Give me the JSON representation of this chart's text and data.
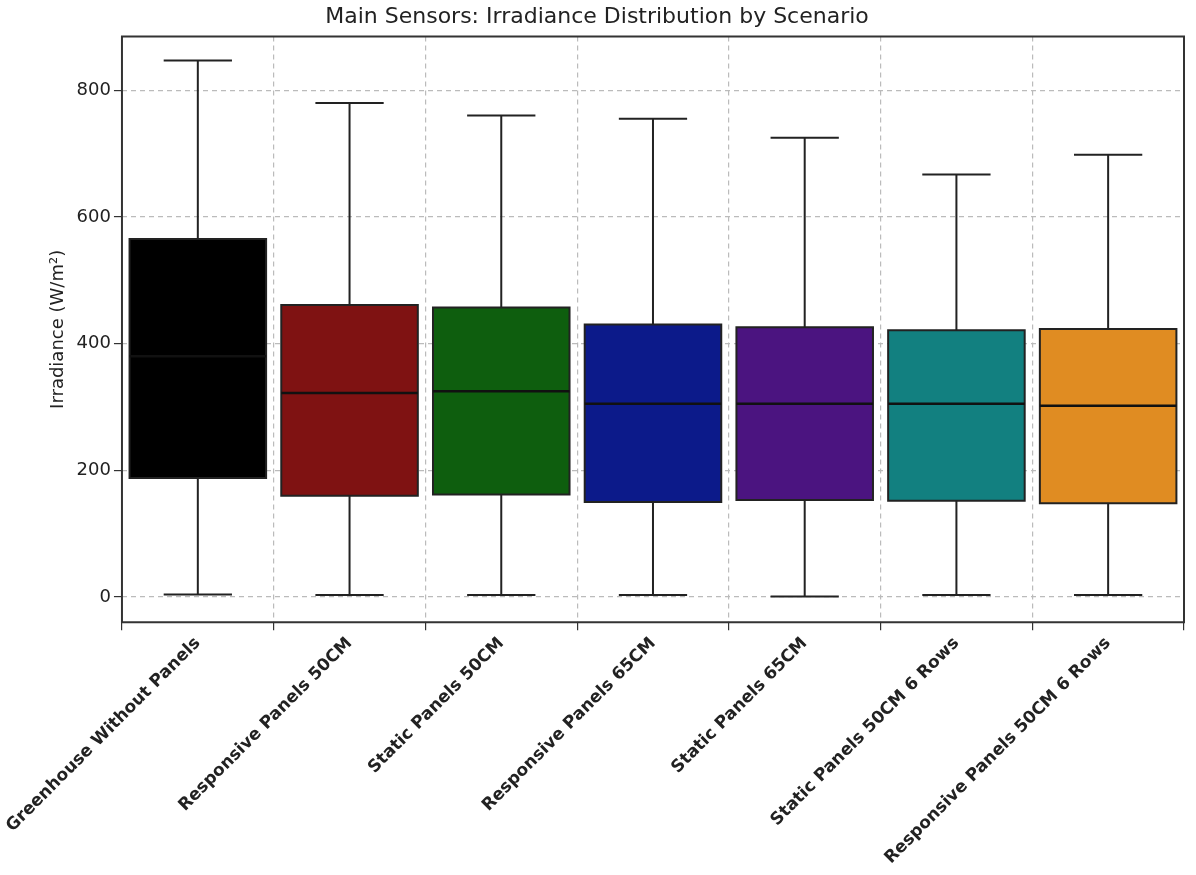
{
  "chart_data": {
    "type": "box",
    "title": "Main Sensors: Irradiance Distribution by Scenario",
    "ylabel": "Irradiance (W/m²)",
    "categories": [
      "Greenhouse Without Panels",
      "Responsive Panels 50CM",
      "Static Panels 50CM",
      "Responsive Panels 65CM",
      "Static Panels 65CM",
      "Static Panels 50CM 6 Rows",
      "Responsive Panels 50CM 6 Rows"
    ],
    "colors": [
      "#000000",
      "#7f1212",
      "#0e5e0e",
      "#0c1a8a",
      "#4b1480",
      "#128080",
      "#e08c22"
    ],
    "boxes": [
      {
        "low": 4,
        "q1": 188,
        "median": 380,
        "q3": 565,
        "high": 847
      },
      {
        "low": 3,
        "q1": 160,
        "median": 322,
        "q3": 461,
        "high": 780
      },
      {
        "low": 3,
        "q1": 162,
        "median": 325,
        "q3": 457,
        "high": 760
      },
      {
        "low": 3,
        "q1": 150,
        "median": 305,
        "q3": 430,
        "high": 755
      },
      {
        "low": 1,
        "q1": 153,
        "median": 305,
        "q3": 426,
        "high": 725
      },
      {
        "low": 3,
        "q1": 152,
        "median": 305,
        "q3": 421,
        "high": 667
      },
      {
        "low": 3,
        "q1": 148,
        "median": 302,
        "q3": 423,
        "high": 698
      }
    ],
    "ylim": [
      -40,
      885
    ],
    "yticks": [
      0,
      200,
      400,
      600,
      800
    ],
    "grid": true
  }
}
